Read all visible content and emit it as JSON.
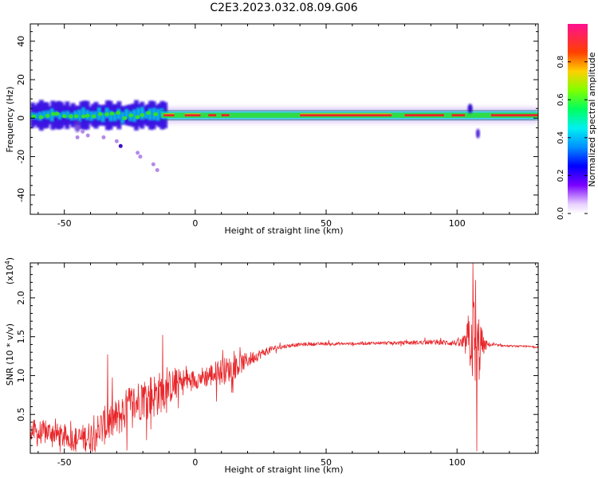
{
  "title": "C2E3.2023.032.08.09.G06",
  "colors": {
    "background": "#ffffff",
    "snr_line": "#e8262a",
    "spec_band_core": "#e8262a",
    "spec_band_mid": "#33dd33",
    "spec_band_low": "#00c8e6",
    "spec_band_faint": "#2a00e0",
    "spec_band_halo": "#c9a8f2"
  },
  "chart_data": [
    {
      "type": "heatmap",
      "name": "spectrogram",
      "xlabel": "Height of straight line (km)",
      "ylabel": "Frequency (Hz)",
      "xlim": [
        -63,
        131
      ],
      "ylim": [
        -50,
        49
      ],
      "xticks": [
        -50,
        0,
        50,
        100
      ],
      "yticks": [
        40,
        20,
        0,
        -20,
        -40
      ],
      "xtick_labels": [
        "-50",
        "0",
        "50",
        "100"
      ],
      "ytick_labels": [
        "40",
        "20",
        "0",
        "-20",
        "-40"
      ],
      "grid": false,
      "band_center_hz": 1.5,
      "colorbar": {
        "label": "Normalized spectral amplitude",
        "range": [
          0,
          1
        ],
        "ticks": [
          0.0,
          0.2,
          0.4,
          0.6,
          0.8
        ],
        "tick_labels": [
          "0.0",
          "0.2",
          "0.4",
          "0.6",
          "0.8"
        ],
        "stops": [
          {
            "v": 0.0,
            "color": "#ffffff"
          },
          {
            "v": 0.05,
            "color": "#e8d0ff"
          },
          {
            "v": 0.15,
            "color": "#7a00ff"
          },
          {
            "v": 0.25,
            "color": "#0000ff"
          },
          {
            "v": 0.35,
            "color": "#0090ff"
          },
          {
            "v": 0.45,
            "color": "#00f0f0"
          },
          {
            "v": 0.55,
            "color": "#00ff60"
          },
          {
            "v": 0.65,
            "color": "#80ff00"
          },
          {
            "v": 0.75,
            "color": "#ffd000"
          },
          {
            "v": 0.85,
            "color": "#ff4000"
          },
          {
            "v": 1.0,
            "color": "#ff1090"
          }
        ]
      }
    },
    {
      "type": "line",
      "name": "snr",
      "xlabel": "Height of straight line (km)",
      "ylabel": "SNR (10 * v/v)",
      "y_scale_label": "(x10",
      "y_scale_exponent": "4",
      "y_scale_suffix": ")",
      "xlim": [
        -63,
        131
      ],
      "ylim": [
        0,
        2.45
      ],
      "xticks": [
        -50,
        0,
        50,
        100
      ],
      "yticks": [
        0.5,
        1.0,
        1.5,
        2.0
      ],
      "xtick_labels": [
        "-50",
        "0",
        "50",
        "100"
      ],
      "ytick_labels": [
        "0.5",
        "1.0",
        "1.5",
        "2.0"
      ],
      "grid": false,
      "series": [
        {
          "name": "SNR",
          "x": [
            -63,
            -60,
            -55,
            -50,
            -45,
            -40,
            -35,
            -30,
            -25,
            -20,
            -15,
            -10,
            -5,
            0,
            5,
            10,
            15,
            20,
            25,
            30,
            35,
            40,
            50,
            60,
            70,
            80,
            90,
            100,
            103,
            105,
            107,
            108,
            109,
            110,
            112,
            115,
            120,
            131
          ],
          "y": [
            0.3,
            0.25,
            0.28,
            0.2,
            0.18,
            0.22,
            0.35,
            0.45,
            0.6,
            0.72,
            0.75,
            0.85,
            0.92,
            0.95,
            1.0,
            1.05,
            1.1,
            1.2,
            1.28,
            1.35,
            1.38,
            1.4,
            1.41,
            1.41,
            1.42,
            1.42,
            1.43,
            1.42,
            1.4,
            1.5,
            1.4,
            1.3,
            1.42,
            1.38,
            1.4,
            1.39,
            1.38,
            1.37
          ],
          "noise": [
            0.14,
            0.18,
            0.14,
            0.15,
            0.16,
            0.2,
            0.25,
            0.25,
            0.28,
            0.28,
            0.3,
            0.22,
            0.18,
            0.12,
            0.15,
            0.18,
            0.15,
            0.1,
            0.06,
            0.04,
            0.025,
            0.02,
            0.02,
            0.02,
            0.02,
            0.025,
            0.03,
            0.04,
            0.12,
            0.45,
            0.7,
            0.55,
            0.35,
            0.12,
            0.03,
            0.015,
            0.012,
            0.012
          ]
        }
      ],
      "spikes": [
        {
          "x": -33.5,
          "y": 1.27
        },
        {
          "x": -12.5,
          "y": 1.52
        },
        {
          "x": 106.0,
          "y": 2.45
        },
        {
          "x": 107.5,
          "y": 0.03
        }
      ]
    }
  ]
}
